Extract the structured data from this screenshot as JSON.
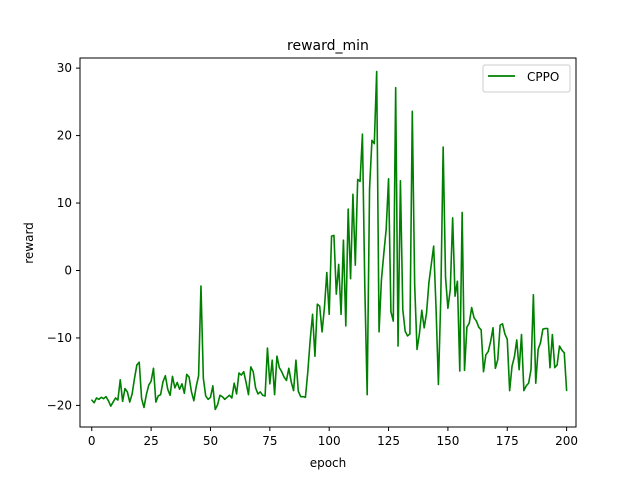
{
  "chart_data": {
    "type": "line",
    "title": "reward_min",
    "xlabel": "epoch",
    "ylabel": "reward",
    "xlim": [
      -4.95,
      203.95
    ],
    "ylim": [
      -23.2,
      31.5
    ],
    "xticks": [
      0,
      25,
      50,
      75,
      100,
      125,
      150,
      175,
      200
    ],
    "yticks": [
      -20,
      -10,
      0,
      10,
      20,
      30
    ],
    "grid": false,
    "legend_position": "top-right",
    "series": [
      {
        "name": "CPPO",
        "color": "#008000",
        "x": [
          0,
          1,
          2,
          3,
          4,
          5,
          6,
          7,
          8,
          9,
          10,
          11,
          12,
          13,
          14,
          15,
          16,
          17,
          18,
          19,
          20,
          21,
          22,
          23,
          24,
          25,
          26,
          27,
          28,
          29,
          30,
          31,
          32,
          33,
          34,
          35,
          36,
          37,
          38,
          39,
          40,
          41,
          42,
          43,
          44,
          45,
          46,
          47,
          48,
          49,
          50,
          51,
          52,
          53,
          54,
          55,
          56,
          57,
          58,
          59,
          60,
          61,
          62,
          63,
          64,
          65,
          66,
          67,
          68,
          69,
          70,
          71,
          72,
          73,
          74,
          75,
          76,
          77,
          78,
          79,
          80,
          81,
          82,
          83,
          84,
          85,
          86,
          87,
          88,
          89,
          90,
          91,
          92,
          93,
          94,
          95,
          96,
          97,
          98,
          99,
          100,
          101,
          102,
          103,
          104,
          105,
          106,
          107,
          108,
          109,
          110,
          111,
          112,
          113,
          114,
          115,
          116,
          117,
          118,
          119,
          120,
          121,
          122,
          123,
          124,
          125,
          126,
          127,
          128,
          129,
          130,
          131,
          132,
          133,
          134,
          135,
          136,
          137,
          138,
          139,
          140,
          141,
          142,
          143,
          144,
          145,
          146,
          147,
          148,
          149,
          150,
          151,
          152,
          153,
          154,
          155,
          156,
          157,
          158,
          159,
          160,
          161,
          162,
          163,
          164,
          165,
          166,
          167,
          168,
          169,
          170,
          171,
          172,
          173,
          174,
          175,
          176,
          177,
          178,
          179,
          180,
          181,
          182,
          183,
          184,
          185,
          186,
          187,
          188,
          189,
          190,
          191,
          192,
          193,
          194,
          195,
          196,
          197,
          198,
          199,
          200
        ],
        "values": [
          -19.2,
          -19.6,
          -18.9,
          -19.1,
          -18.8,
          -19.0,
          -18.7,
          -19.3,
          -20.1,
          -19.5,
          -18.9,
          -19.2,
          -16.2,
          -19.4,
          -17.5,
          -18.0,
          -19.5,
          -18.3,
          -16.0,
          -14.0,
          -13.6,
          -19.0,
          -20.3,
          -18.4,
          -17.0,
          -16.4,
          -14.5,
          -19.5,
          -18.6,
          -18.4,
          -16.5,
          -15.6,
          -17.6,
          -18.5,
          -15.7,
          -17.4,
          -16.6,
          -17.6,
          -16.8,
          -18.2,
          -15.4,
          -15.8,
          -18.0,
          -19.3,
          -17.2,
          -15.6,
          -2.3,
          -16.0,
          -18.6,
          -19.1,
          -18.8,
          -17.1,
          -20.6,
          -19.9,
          -18.5,
          -18.7,
          -19.1,
          -18.8,
          -18.5,
          -18.9,
          -16.7,
          -18.3,
          -15.2,
          -15.5,
          -15.0,
          -16.6,
          -18.4,
          -14.3,
          -15.0,
          -17.4,
          -18.3,
          -18.0,
          -18.5,
          -18.6,
          -11.5,
          -16.8,
          -13.3,
          -18.4,
          -12.7,
          -14.4,
          -15.0,
          -15.8,
          -16.3,
          -14.5,
          -16.5,
          -17.8,
          -13.3,
          -17.9,
          -18.7,
          -18.7,
          -18.8,
          -15.0,
          -10.3,
          -6.5,
          -12.7,
          -5.0,
          -5.3,
          -9.1,
          -5.5,
          -0.3,
          -6.5,
          5.1,
          5.2,
          -3.5,
          0.9,
          -6.5,
          4.5,
          -8.2,
          9.1,
          -1.2,
          11.3,
          0.8,
          13.5,
          13.2,
          20.2,
          -2.4,
          -18.4,
          12.1,
          19.3,
          18.8,
          29.5,
          -9.1,
          -1.4,
          2.5,
          6.1,
          13.6,
          -6.1,
          -7.5,
          27.1,
          -11.2,
          13.3,
          -5.8,
          -9.0,
          -9.7,
          -9.4,
          23.6,
          -2.1,
          -11.7,
          -9.4,
          -5.9,
          -8.5,
          -6.3,
          -1.8,
          0.9,
          3.6,
          -5.5,
          -16.9,
          -4.1,
          18.3,
          -1.0,
          -5.6,
          -2.8,
          7.8,
          -3.8,
          -1.6,
          -14.9,
          8.6,
          -14.8,
          -8.4,
          -7.8,
          -5.5,
          -7.0,
          -7.5,
          -8.4,
          -8.8,
          -15.0,
          -12.5,
          -12.0,
          -10.5,
          -8.5,
          -14.5,
          -13.2,
          -8.1,
          -7.9,
          -9.4,
          -10.2,
          -17.8,
          -14.2,
          -12.8,
          -10.3,
          -14.7,
          -9.5,
          -17.8,
          -17.1,
          -16.7,
          -14.7,
          -3.6,
          -16.7,
          -11.7,
          -10.7,
          -8.7,
          -8.6,
          -8.6,
          -14.4,
          -9.5,
          -14.4,
          -14.0,
          -11.2,
          -11.8,
          -12.2,
          -17.8
        ]
      }
    ]
  }
}
